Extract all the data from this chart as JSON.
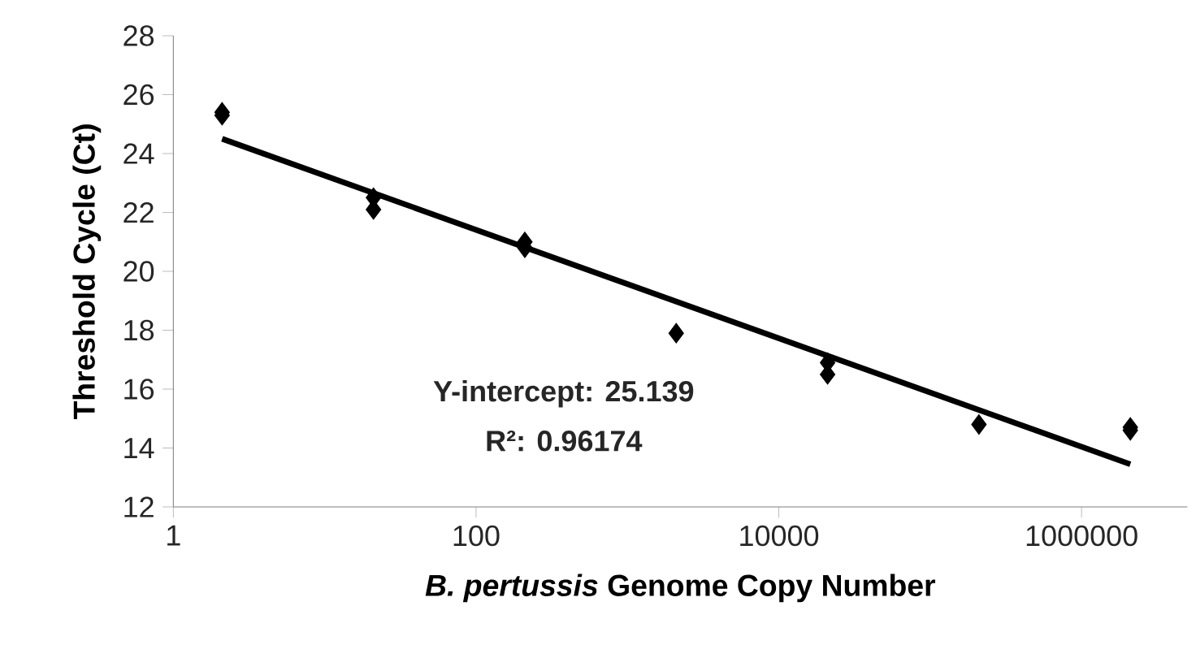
{
  "chart_data": {
    "type": "scatter",
    "xlabel": "*B. pertussis* Genome Copy Number",
    "ylabel": "Threshold Cycle (Ct)",
    "log": "x",
    "xlim": [
      1,
      5000000
    ],
    "xticks": [
      1,
      100,
      10000,
      1000000
    ],
    "ylim": [
      12,
      28
    ],
    "yticks": [
      12,
      14,
      16,
      18,
      20,
      22,
      24,
      26,
      28
    ],
    "marker": "diamond",
    "annotations": [
      "Y-intercept: 25.139",
      "R²: 0.96174"
    ],
    "series": [
      {
        "color": "#000000",
        "x": [
          2.1,
          2.1,
          21,
          21,
          210,
          210,
          2100,
          21000,
          21000,
          210000,
          2100000,
          2100000
        ],
        "values": [
          25.4,
          25.3,
          22.5,
          22.1,
          21.0,
          20.8,
          17.9,
          16.9,
          16.5,
          14.8,
          14.7,
          14.6
        ]
      },
      {
        "type": "line",
        "color": "#000000",
        "marker": "none",
        "line_style": "solid",
        "x": [
          2.1,
          2100000
        ],
        "values": [
          24.5,
          13.45
        ]
      }
    ]
  }
}
